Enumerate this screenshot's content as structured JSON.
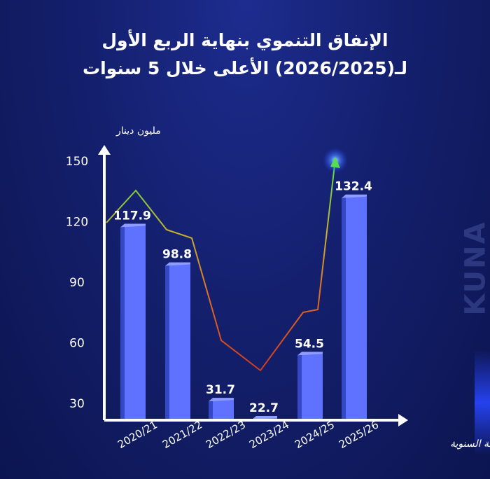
{
  "header": {
    "title_line1": "الإنفاق التنموي بنهاية الربع الأول",
    "title_line2": "لـ(2026/2025) الأعلى خلال 5 سنوات"
  },
  "watermark": "KUNA",
  "colors": {
    "background": "#14206e",
    "bar_front": "#5f72ff",
    "bar_side": "#3447c4",
    "bar_top": "#8e9cff",
    "line_green": "#54e04a",
    "line_orange": "#e06a22",
    "line_red": "#cf3a1d"
  },
  "chart_data": {
    "type": "bar",
    "title": "الإنفاق التنموي بنهاية الربع الأول لـ(2026/2025) الأعلى خلال 5 سنوات",
    "xlabel": "الخطة السنوية",
    "ylabel": "مليون دينار",
    "categories": [
      "2020/21",
      "2021/22",
      "2022/23",
      "2023/24",
      "2024/25",
      "2025/26"
    ],
    "values": [
      117.9,
      98.8,
      31.7,
      22.7,
      54.5,
      132.4
    ],
    "y_ticks": [
      30,
      60,
      90,
      120,
      150
    ],
    "ylim": [
      22,
      160
    ],
    "grid": false,
    "legend": "none",
    "trend_line": true
  }
}
